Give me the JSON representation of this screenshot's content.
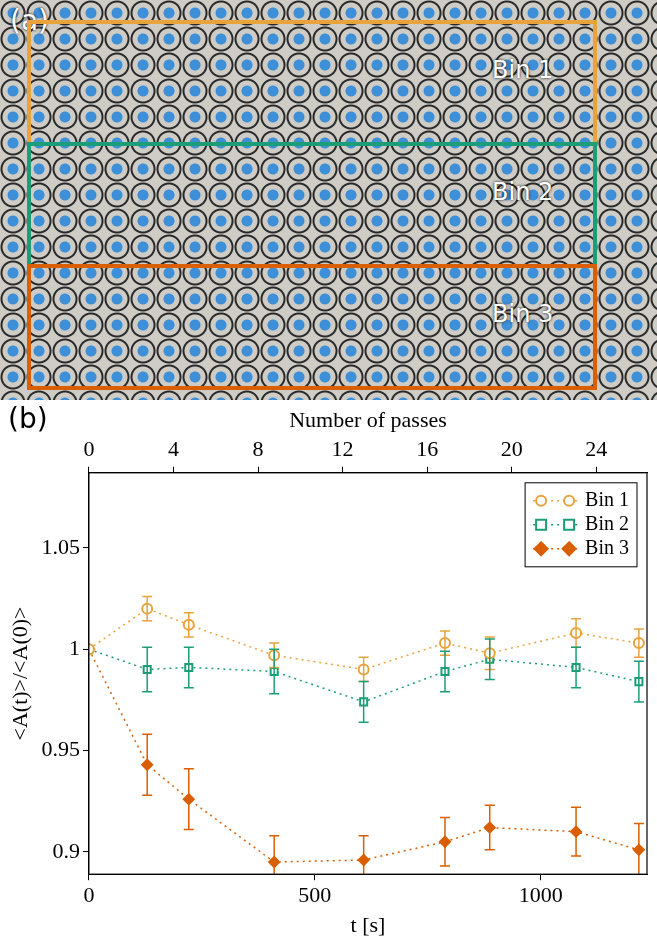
{
  "panel_a": {
    "label": "(a)",
    "bins": [
      "Bin 1",
      "Bin 2",
      "Bin 3"
    ]
  },
  "chart_data": {
    "type": "line",
    "panel_label": "(b)",
    "x_label": "t [s]",
    "x2_label": "Number of passes",
    "y_label": "<A(t)>/<A(0)>",
    "x": [
      0,
      129,
      221,
      410,
      608,
      788,
      887,
      1078,
      1217
    ],
    "xlim": [
      0,
      1235
    ],
    "xticks": [
      0,
      500,
      1000
    ],
    "x2lim": [
      0,
      26.4
    ],
    "x2ticks": [
      0,
      4,
      8,
      12,
      16,
      20,
      24
    ],
    "ylim": [
      0.889,
      1.087
    ],
    "yticks": [
      0.9,
      0.95,
      1,
      1.05
    ],
    "grid": false,
    "legend": "top-right",
    "line_style": "dotted",
    "series": [
      {
        "name": "Bin 1",
        "color": "#e8a33d",
        "marker": "open-circle",
        "values": [
          1,
          1.02,
          1.012,
          0.997,
          0.99,
          1.003,
          0.998,
          1.008,
          1.003
        ],
        "errors": [
          0,
          0.006,
          0.006,
          0.006,
          0.006,
          0.006,
          0.008,
          0.007,
          0.007
        ]
      },
      {
        "name": "Bin 2",
        "color": "#1b9e77",
        "marker": "open-square",
        "values": [
          1,
          0.99,
          0.991,
          0.989,
          0.974,
          0.989,
          0.995,
          0.991,
          0.984
        ],
        "errors": [
          0,
          0.011,
          0.01,
          0.011,
          0.01,
          0.01,
          0.01,
          0.01,
          0.01
        ]
      },
      {
        "name": "Bin 3",
        "color": "#d95f02",
        "marker": "diamond",
        "values": [
          1,
          0.943,
          0.926,
          0.895,
          0.896,
          0.905,
          0.912,
          0.91,
          0.901
        ],
        "errors": [
          0,
          0.015,
          0.015,
          0.013,
          0.012,
          0.012,
          0.011,
          0.012,
          0.013
        ]
      }
    ]
  }
}
